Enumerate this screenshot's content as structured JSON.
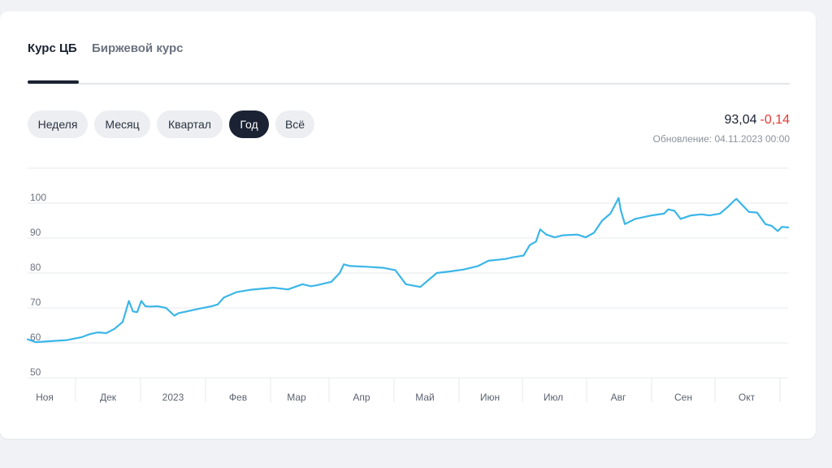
{
  "tabs": [
    {
      "label": "Курс ЦБ",
      "active": true
    },
    {
      "label": "Биржевой курс",
      "active": false
    }
  ],
  "periods": [
    {
      "label": "Неделя",
      "active": false
    },
    {
      "label": "Месяц",
      "active": false
    },
    {
      "label": "Квартал",
      "active": false
    },
    {
      "label": "Год",
      "active": true
    },
    {
      "label": "Всё",
      "active": false
    }
  ],
  "quote": {
    "price": "93,04",
    "change": "-0,14",
    "updated": "Обновление: 04.11.2023 00:00"
  },
  "colors": {
    "line": "#3bb6e8",
    "accent_dark": "#1a2233",
    "negative": "#e53935"
  },
  "chart_data": {
    "type": "line",
    "y_ticks": [
      50,
      60,
      70,
      80,
      90,
      100
    ],
    "ylim": [
      50,
      105
    ],
    "x_ticks": [
      "Ноя",
      "Дек",
      "2023",
      "Фев",
      "Мар",
      "Апр",
      "Май",
      "Июн",
      "Июл",
      "Авг",
      "Сен",
      "Окт"
    ],
    "grid": true,
    "series": [
      {
        "x": [
          "2022-11-01",
          "2022-11-05",
          "2022-11-12",
          "2022-11-20",
          "2022-11-27",
          "2022-12-01",
          "2022-12-05",
          "2022-12-09",
          "2022-12-13",
          "2022-12-17",
          "2022-12-20",
          "2022-12-22",
          "2022-12-24",
          "2022-12-26",
          "2022-12-28",
          "2022-12-30",
          "2023-01-03",
          "2023-01-07",
          "2023-01-11",
          "2023-01-13",
          "2023-01-17",
          "2023-01-23",
          "2023-01-29",
          "2023-02-01",
          "2023-02-04",
          "2023-02-10",
          "2023-02-17",
          "2023-02-22",
          "2023-02-28",
          "2023-03-07",
          "2023-03-14",
          "2023-03-18",
          "2023-03-21",
          "2023-03-28",
          "2023-04-01",
          "2023-04-03",
          "2023-04-06",
          "2023-04-14",
          "2023-04-22",
          "2023-04-28",
          "2023-05-03",
          "2023-05-10",
          "2023-05-14",
          "2023-05-18",
          "2023-05-25",
          "2023-05-31",
          "2023-06-07",
          "2023-06-12",
          "2023-06-20",
          "2023-06-24",
          "2023-06-29",
          "2023-07-02",
          "2023-07-05",
          "2023-07-07",
          "2023-07-10",
          "2023-07-14",
          "2023-07-18",
          "2023-07-25",
          "2023-07-29",
          "2023-08-02",
          "2023-08-06",
          "2023-08-10",
          "2023-08-14",
          "2023-08-15",
          "2023-08-17",
          "2023-08-22",
          "2023-08-30",
          "2023-09-05",
          "2023-09-07",
          "2023-09-10",
          "2023-09-13",
          "2023-09-18",
          "2023-09-23",
          "2023-09-27",
          "2023-10-02",
          "2023-10-06",
          "2023-10-09",
          "2023-10-10",
          "2023-10-16",
          "2023-10-20",
          "2023-10-24",
          "2023-10-27",
          "2023-10-30",
          "2023-11-01",
          "2023-11-04"
        ],
        "y": [
          61.0,
          60.2,
          60.5,
          60.8,
          61.6,
          62.5,
          63.0,
          62.8,
          64.0,
          66.0,
          72.0,
          69.0,
          68.8,
          72.0,
          70.5,
          70.4,
          70.5,
          70.0,
          67.8,
          68.5,
          69.0,
          69.8,
          70.5,
          71.0,
          73.0,
          74.5,
          75.2,
          75.5,
          75.8,
          75.3,
          76.8,
          76.2,
          76.5,
          77.5,
          80.0,
          82.5,
          82.0,
          81.8,
          81.5,
          80.8,
          76.8,
          76.0,
          78.0,
          80.0,
          80.5,
          81.0,
          82.0,
          83.5,
          84.0,
          84.5,
          85.0,
          88.0,
          89.0,
          92.5,
          91.0,
          90.2,
          90.8,
          91.0,
          90.2,
          91.5,
          95.0,
          97.0,
          101.5,
          98.0,
          94.0,
          95.5,
          96.5,
          97.0,
          98.2,
          97.8,
          95.5,
          96.5,
          96.8,
          96.5,
          97.0,
          99.0,
          100.8,
          101.2,
          97.5,
          97.3,
          94.0,
          93.5,
          92.0,
          93.2,
          93.04
        ]
      }
    ]
  }
}
